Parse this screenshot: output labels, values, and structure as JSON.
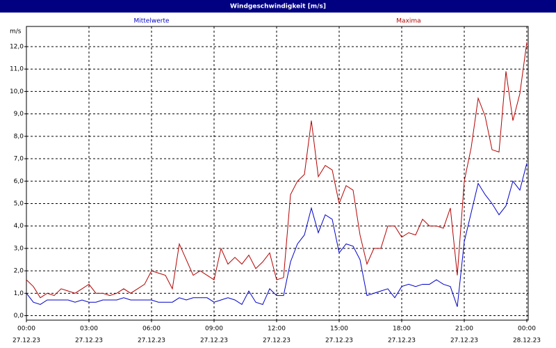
{
  "chart_data": {
    "type": "line",
    "title": "Windgeschwindigkeit [m/s]",
    "y_label": "m/s",
    "x": [
      0,
      20,
      40,
      60,
      80,
      100,
      120,
      140,
      160,
      180,
      200,
      220,
      240,
      260,
      280,
      300,
      320,
      340,
      360,
      380,
      400,
      420,
      440,
      460,
      480,
      500,
      520,
      540,
      560,
      580,
      600,
      620,
      640,
      660,
      680,
      700,
      720,
      740,
      760,
      780,
      800,
      820,
      840,
      860,
      880,
      900,
      920,
      940,
      960,
      980,
      1000,
      1020,
      1040,
      1060,
      1080,
      1100,
      1120,
      1140,
      1160,
      1180,
      1200,
      1220,
      1240,
      1260,
      1280,
      1300,
      1320,
      1340,
      1360,
      1380,
      1400,
      1420,
      1440
    ],
    "xlim": [
      0,
      1444
    ],
    "xticks": [
      {
        "value": 0,
        "label": "00:00"
      },
      {
        "value": 180,
        "label": "03:00"
      },
      {
        "value": 360,
        "label": "06:00"
      },
      {
        "value": 540,
        "label": "09:00"
      },
      {
        "value": 720,
        "label": "12:00"
      },
      {
        "value": 900,
        "label": "15:00"
      },
      {
        "value": 1080,
        "label": "18:00"
      },
      {
        "value": 1260,
        "label": "21:00"
      },
      {
        "value": 1440,
        "label": "00:00"
      }
    ],
    "xtick_dates": [
      "27.12.23",
      "27.12.23",
      "27.12.23",
      "27.12.23",
      "27.12.23",
      "27.12.23",
      "27.12.23",
      "27.12.23",
      "28.12.23"
    ],
    "ylim": [
      -0.2,
      12.9
    ],
    "yticks": [
      {
        "value": 0,
        "label": "0,0"
      },
      {
        "value": 1,
        "label": "1,0"
      },
      {
        "value": 2,
        "label": "2,0"
      },
      {
        "value": 3,
        "label": "3,0"
      },
      {
        "value": 4,
        "label": "4,0"
      },
      {
        "value": 5,
        "label": "5,0"
      },
      {
        "value": 6,
        "label": "6,0"
      },
      {
        "value": 7,
        "label": "7,0"
      },
      {
        "value": 8,
        "label": "8,0"
      },
      {
        "value": 9,
        "label": "9,0"
      },
      {
        "value": 10,
        "label": "10,0"
      },
      {
        "value": 11,
        "label": "11,0"
      },
      {
        "value": 12,
        "label": "12,0"
      }
    ],
    "grid": true,
    "series": [
      {
        "name": "Mittelwerte",
        "color": "#0000c8",
        "values": [
          1.0,
          0.6,
          0.5,
          0.7,
          0.7,
          0.7,
          0.7,
          0.6,
          0.7,
          0.6,
          0.6,
          0.7,
          0.7,
          0.7,
          0.8,
          0.7,
          0.7,
          0.7,
          0.7,
          0.6,
          0.6,
          0.6,
          0.8,
          0.7,
          0.8,
          0.8,
          0.8,
          0.6,
          0.7,
          0.8,
          0.7,
          0.5,
          1.1,
          0.6,
          0.5,
          1.2,
          0.9,
          0.9,
          2.4,
          3.2,
          3.6,
          4.8,
          3.7,
          4.5,
          4.3,
          2.8,
          3.2,
          3.1,
          2.5,
          0.9,
          1.0,
          1.1,
          1.2,
          0.8,
          1.3,
          1.4,
          1.3,
          1.4,
          1.4,
          1.6,
          1.4,
          1.3,
          0.4,
          3.3,
          4.6,
          5.9,
          5.4,
          5.0,
          4.5,
          4.9,
          6.0,
          5.6,
          6.8
        ]
      },
      {
        "name": "Maxima",
        "color": "#b40000",
        "values": [
          1.6,
          1.3,
          0.8,
          1.0,
          0.9,
          1.2,
          1.1,
          1.0,
          1.2,
          1.4,
          1.0,
          1.0,
          0.9,
          1.0,
          1.2,
          1.0,
          1.2,
          1.4,
          2.0,
          1.9,
          1.8,
          1.2,
          3.2,
          2.5,
          1.8,
          2.0,
          1.8,
          1.6,
          3.0,
          2.3,
          2.6,
          2.3,
          2.7,
          2.1,
          2.4,
          2.8,
          1.6,
          1.7,
          5.4,
          6.0,
          6.3,
          8.7,
          6.2,
          6.7,
          6.5,
          5.0,
          5.8,
          5.6,
          3.6,
          2.3,
          3.0,
          3.0,
          4.0,
          4.0,
          3.5,
          3.7,
          3.6,
          4.3,
          4.0,
          4.0,
          3.9,
          4.8,
          1.8,
          6.0,
          7.5,
          9.7,
          8.9,
          7.4,
          7.3,
          10.9,
          8.7,
          9.9,
          12.2
        ]
      }
    ]
  }
}
